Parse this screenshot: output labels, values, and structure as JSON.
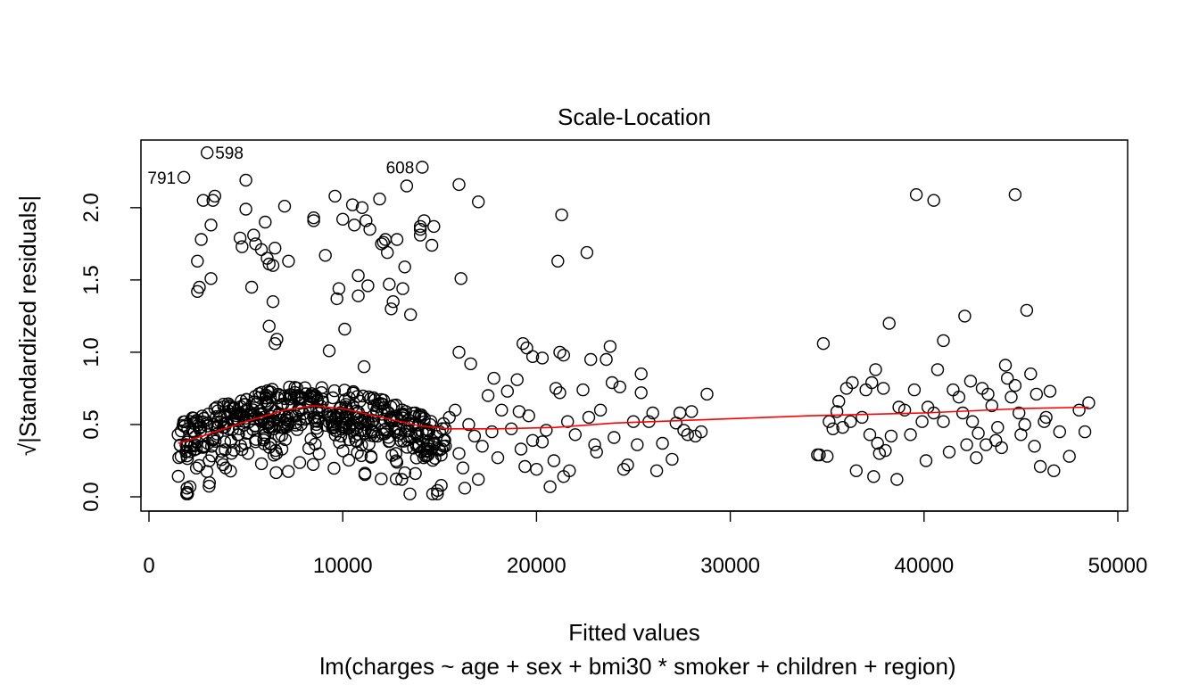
{
  "chart_data": {
    "type": "scatter",
    "title": "Scale-Location",
    "xlabel": "Fitted values",
    "ylabel": "√|Standardized residuals|",
    "subtitle": "lm(charges ~ age + sex + bmi30 * smoker + children + region)",
    "xlim": [
      0,
      50000
    ],
    "ylim": [
      0,
      2.4
    ],
    "x_ticks": [
      0,
      10000,
      20000,
      30000,
      40000,
      50000
    ],
    "x_tick_labels": [
      "0",
      "10000",
      "20000",
      "30000",
      "40000",
      "50000"
    ],
    "y_ticks": [
      0.0,
      0.5,
      1.0,
      1.5,
      2.0
    ],
    "y_tick_labels": [
      "0.0",
      "0.5",
      "1.0",
      "1.5",
      "2.0"
    ],
    "grid": false,
    "point_color": "#000000",
    "smooth_color": "#ff0000",
    "labeled_points": [
      {
        "label": "598",
        "x": 3000,
        "y": 2.38
      },
      {
        "label": "791",
        "x": 1800,
        "y": 2.21
      },
      {
        "label": "608",
        "x": 14100,
        "y": 2.28
      }
    ],
    "smooth": [
      {
        "x": 1500,
        "y": 0.37
      },
      {
        "x": 3000,
        "y": 0.43
      },
      {
        "x": 5000,
        "y": 0.52
      },
      {
        "x": 7000,
        "y": 0.6
      },
      {
        "x": 8500,
        "y": 0.63
      },
      {
        "x": 10000,
        "y": 0.61
      },
      {
        "x": 12000,
        "y": 0.55
      },
      {
        "x": 14000,
        "y": 0.49
      },
      {
        "x": 15500,
        "y": 0.47
      },
      {
        "x": 18000,
        "y": 0.47
      },
      {
        "x": 21000,
        "y": 0.48
      },
      {
        "x": 24000,
        "y": 0.51
      },
      {
        "x": 28000,
        "y": 0.53
      },
      {
        "x": 34000,
        "y": 0.56
      },
      {
        "x": 40000,
        "y": 0.58
      },
      {
        "x": 45000,
        "y": 0.61
      },
      {
        "x": 48500,
        "y": 0.62
      }
    ],
    "points": [
      [
        3000,
        2.38
      ],
      [
        1800,
        2.21
      ],
      [
        14100,
        2.28
      ],
      [
        2800,
        2.05
      ],
      [
        3300,
        2.05
      ],
      [
        3400,
        2.08
      ],
      [
        5000,
        2.19
      ],
      [
        5000,
        1.99
      ],
      [
        3200,
        1.88
      ],
      [
        2700,
        1.78
      ],
      [
        2500,
        1.63
      ],
      [
        3200,
        1.51
      ],
      [
        2600,
        1.45
      ],
      [
        2500,
        1.42
      ],
      [
        4700,
        1.79
      ],
      [
        4800,
        1.73
      ],
      [
        5400,
        1.81
      ],
      [
        5500,
        1.75
      ],
      [
        5800,
        1.71
      ],
      [
        6000,
        1.9
      ],
      [
        6100,
        1.65
      ],
      [
        6200,
        1.61
      ],
      [
        6400,
        1.6
      ],
      [
        6500,
        1.72
      ],
      [
        7000,
        2.01
      ],
      [
        7200,
        1.63
      ],
      [
        5300,
        1.45
      ],
      [
        6400,
        1.35
      ],
      [
        6200,
        1.18
      ],
      [
        6600,
        1.09
      ],
      [
        6500,
        1.06
      ],
      [
        8500,
        1.93
      ],
      [
        8500,
        1.91
      ],
      [
        9100,
        1.67
      ],
      [
        9300,
        1.01
      ],
      [
        9600,
        2.08
      ],
      [
        9800,
        1.44
      ],
      [
        9700,
        1.37
      ],
      [
        10100,
        1.16
      ],
      [
        10000,
        1.92
      ],
      [
        10500,
        2.02
      ],
      [
        10600,
        1.88
      ],
      [
        10800,
        1.53
      ],
      [
        10800,
        1.39
      ],
      [
        11000,
        2.0
      ],
      [
        11200,
        1.91
      ],
      [
        11400,
        1.85
      ],
      [
        11300,
        1.46
      ],
      [
        11900,
        2.06
      ],
      [
        12000,
        1.75
      ],
      [
        12100,
        1.76
      ],
      [
        12200,
        1.78
      ],
      [
        12300,
        1.69
      ],
      [
        12400,
        1.47
      ],
      [
        12500,
        1.3
      ],
      [
        12600,
        1.35
      ],
      [
        12800,
        1.78
      ],
      [
        13100,
        1.44
      ],
      [
        13200,
        1.59
      ],
      [
        13300,
        2.15
      ],
      [
        13500,
        1.26
      ],
      [
        14000,
        1.87
      ],
      [
        14000,
        1.85
      ],
      [
        14000,
        1.81
      ],
      [
        14200,
        1.91
      ],
      [
        14600,
        1.74
      ],
      [
        14700,
        1.87
      ],
      [
        11100,
        0.9
      ],
      [
        16000,
        2.16
      ],
      [
        16100,
        1.51
      ],
      [
        17000,
        2.04
      ],
      [
        16000,
        1.0
      ],
      [
        16600,
        0.92
      ],
      [
        21100,
        1.63
      ],
      [
        21300,
        1.95
      ],
      [
        22600,
        1.69
      ],
      [
        19300,
        1.06
      ],
      [
        19500,
        1.03
      ],
      [
        19800,
        0.97
      ],
      [
        20300,
        0.96
      ],
      [
        21200,
        1.0
      ],
      [
        21400,
        0.98
      ],
      [
        22800,
        0.95
      ],
      [
        23600,
        0.95
      ],
      [
        23800,
        1.04
      ],
      [
        34800,
        1.06
      ],
      [
        38200,
        1.2
      ],
      [
        39600,
        2.09
      ],
      [
        40500,
        2.05
      ],
      [
        44700,
        2.09
      ],
      [
        42100,
        1.25
      ],
      [
        45300,
        1.29
      ],
      [
        41000,
        1.08
      ],
      [
        15000,
        0.45
      ],
      [
        15200,
        0.35
      ],
      [
        15500,
        0.55
      ],
      [
        15800,
        0.6
      ],
      [
        16000,
        0.3
      ],
      [
        16200,
        0.2
      ],
      [
        16300,
        0.06
      ],
      [
        16500,
        0.5
      ],
      [
        16800,
        0.42
      ],
      [
        17000,
        0.12
      ],
      [
        17200,
        0.35
      ],
      [
        17500,
        0.7
      ],
      [
        17700,
        0.45
      ],
      [
        17800,
        0.82
      ],
      [
        18000,
        0.27
      ],
      [
        18200,
        0.6
      ],
      [
        18500,
        0.73
      ],
      [
        18700,
        0.47
      ],
      [
        19000,
        0.81
      ],
      [
        19100,
        0.59
      ],
      [
        19200,
        0.33
      ],
      [
        19400,
        0.21
      ],
      [
        19600,
        0.56
      ],
      [
        19800,
        0.39
      ],
      [
        20000,
        0.19
      ],
      [
        20300,
        0.38
      ],
      [
        20500,
        0.46
      ],
      [
        20700,
        0.07
      ],
      [
        20900,
        0.25
      ],
      [
        21000,
        0.75
      ],
      [
        21200,
        0.72
      ],
      [
        21400,
        0.14
      ],
      [
        21600,
        0.52
      ],
      [
        21700,
        0.18
      ],
      [
        22000,
        0.43
      ],
      [
        22400,
        0.74
      ],
      [
        22700,
        0.55
      ],
      [
        23000,
        0.36
      ],
      [
        23100,
        0.31
      ],
      [
        23300,
        0.6
      ],
      [
        23900,
        0.79
      ],
      [
        24000,
        0.41
      ],
      [
        24300,
        0.76
      ],
      [
        24500,
        0.19
      ],
      [
        24700,
        0.22
      ],
      [
        25000,
        0.52
      ],
      [
        25200,
        0.36
      ],
      [
        25400,
        0.72
      ],
      [
        25400,
        0.85
      ],
      [
        25800,
        0.52
      ],
      [
        26000,
        0.58
      ],
      [
        26200,
        0.18
      ],
      [
        26500,
        0.37
      ],
      [
        27000,
        0.26
      ],
      [
        27200,
        0.51
      ],
      [
        27400,
        0.58
      ],
      [
        27600,
        0.46
      ],
      [
        27800,
        0.43
      ],
      [
        28000,
        0.59
      ],
      [
        28200,
        0.42
      ],
      [
        28500,
        0.45
      ],
      [
        28800,
        0.71
      ],
      [
        34500,
        0.29
      ],
      [
        34600,
        0.29
      ],
      [
        35000,
        0.28
      ],
      [
        35100,
        0.52
      ],
      [
        35300,
        0.47
      ],
      [
        35500,
        0.59
      ],
      [
        35600,
        0.66
      ],
      [
        35800,
        0.48
      ],
      [
        36000,
        0.75
      ],
      [
        36200,
        0.52
      ],
      [
        36300,
        0.79
      ],
      [
        36500,
        0.18
      ],
      [
        36800,
        0.55
      ],
      [
        37000,
        0.74
      ],
      [
        37200,
        0.43
      ],
      [
        37300,
        0.79
      ],
      [
        37400,
        0.14
      ],
      [
        37500,
        0.88
      ],
      [
        37600,
        0.37
      ],
      [
        37700,
        0.3
      ],
      [
        37900,
        0.75
      ],
      [
        38000,
        0.32
      ],
      [
        38300,
        0.42
      ],
      [
        38600,
        0.12
      ],
      [
        38700,
        0.62
      ],
      [
        39000,
        0.6
      ],
      [
        39300,
        0.43
      ],
      [
        39500,
        0.74
      ],
      [
        39900,
        0.52
      ],
      [
        40100,
        0.25
      ],
      [
        40200,
        0.62
      ],
      [
        40500,
        0.58
      ],
      [
        40700,
        0.88
      ],
      [
        41000,
        0.52
      ],
      [
        41300,
        0.31
      ],
      [
        41500,
        0.74
      ],
      [
        41800,
        0.69
      ],
      [
        42000,
        0.58
      ],
      [
        42200,
        0.36
      ],
      [
        42400,
        0.8
      ],
      [
        42500,
        0.52
      ],
      [
        42700,
        0.27
      ],
      [
        42800,
        0.44
      ],
      [
        43000,
        0.75
      ],
      [
        43200,
        0.36
      ],
      [
        43300,
        0.71
      ],
      [
        43500,
        0.63
      ],
      [
        43700,
        0.39
      ],
      [
        43800,
        0.48
      ],
      [
        44000,
        0.34
      ],
      [
        44200,
        0.91
      ],
      [
        44300,
        0.82
      ],
      [
        44500,
        0.69
      ],
      [
        44700,
        0.77
      ],
      [
        44900,
        0.58
      ],
      [
        45000,
        0.43
      ],
      [
        45200,
        0.5
      ],
      [
        45500,
        0.85
      ],
      [
        45700,
        0.35
      ],
      [
        45800,
        0.71
      ],
      [
        46000,
        0.21
      ],
      [
        46200,
        0.52
      ],
      [
        46300,
        0.55
      ],
      [
        46500,
        0.73
      ],
      [
        46700,
        0.18
      ],
      [
        47000,
        0.45
      ],
      [
        47500,
        0.28
      ],
      [
        48000,
        0.6
      ],
      [
        48300,
        0.45
      ],
      [
        48500,
        0.65
      ]
    ]
  }
}
